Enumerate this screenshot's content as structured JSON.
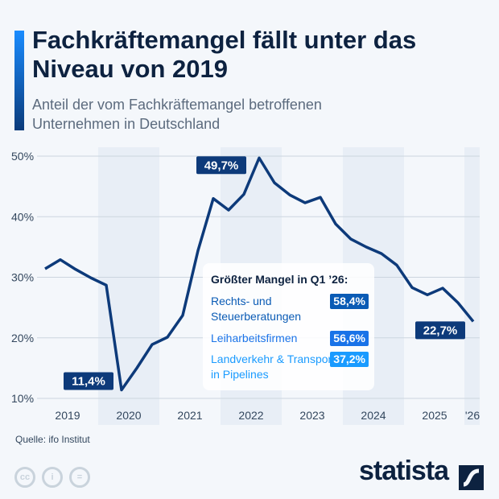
{
  "title": "Fachkräftemangel fällt unter das Niveau von 2019",
  "subtitle": "Anteil der vom Fachkräftemangel betroffenen Unternehmen in Deutschland",
  "source": "Quelle: ifo Institut",
  "brand": "statista",
  "license_icons": [
    "cc-icon",
    "by-icon",
    "nd-icon"
  ],
  "chart_data": {
    "type": "line",
    "title": "Fachkräftemangel fällt unter das Niveau von 2019",
    "ylim": [
      10,
      50
    ],
    "yticks": [
      "10%",
      "20%",
      "30%",
      "40%",
      "50%"
    ],
    "ytick_values": [
      10,
      20,
      30,
      40,
      50
    ],
    "year_labels": [
      "2019",
      "2020",
      "2021",
      "2022",
      "2023",
      "2024",
      "2025",
      "'26"
    ],
    "x": [
      "Q1 2019",
      "Q2 2019",
      "Q3 2019",
      "Q4 2019",
      "Q1 2020",
      "Q2 2020",
      "Q3 2020",
      "Q4 2020",
      "Q1 2021",
      "Q2 2021",
      "Q3 2021",
      "Q4 2021",
      "Q1 2022",
      "Q2 2022",
      "Q3 2022",
      "Q4 2022",
      "Q1 2023",
      "Q2 2023",
      "Q3 2023",
      "Q4 2023",
      "Q1 2024",
      "Q2 2024",
      "Q3 2024",
      "Q4 2024",
      "Q1 2025",
      "Q2 2025",
      "Q3 2025",
      "Q4 2025",
      "Q1 2026"
    ],
    "values": [
      31.4,
      32.9,
      31.3,
      29.9,
      28.7,
      11.4,
      15.0,
      18.9,
      20.1,
      23.7,
      34.4,
      43.0,
      41.1,
      43.7,
      49.7,
      45.6,
      43.6,
      42.3,
      43.2,
      38.8,
      36.3,
      35.0,
      33.9,
      32.0,
      28.3,
      27.1,
      28.2,
      25.8,
      22.7
    ],
    "line_color": "#0d3a7a",
    "grid": true,
    "annotations": [
      {
        "index": 5,
        "label": "11,4%"
      },
      {
        "index": 14,
        "label": "49,7%"
      },
      {
        "index": 28,
        "label": "22,7%"
      }
    ]
  },
  "callout": {
    "heading": "Größter Mangel in Q1 ’26:",
    "items": [
      {
        "label": "Rechts- und Steuerberatungen",
        "value": "58,4%",
        "color": "#0a5bb5"
      },
      {
        "label": "Leiharbeitsfirmen",
        "value": "56,6%",
        "color": "#1a73e8"
      },
      {
        "label": "Landverkehr & Transport in Pipelines",
        "value": "37,2%",
        "color": "#1a9bff"
      }
    ]
  }
}
